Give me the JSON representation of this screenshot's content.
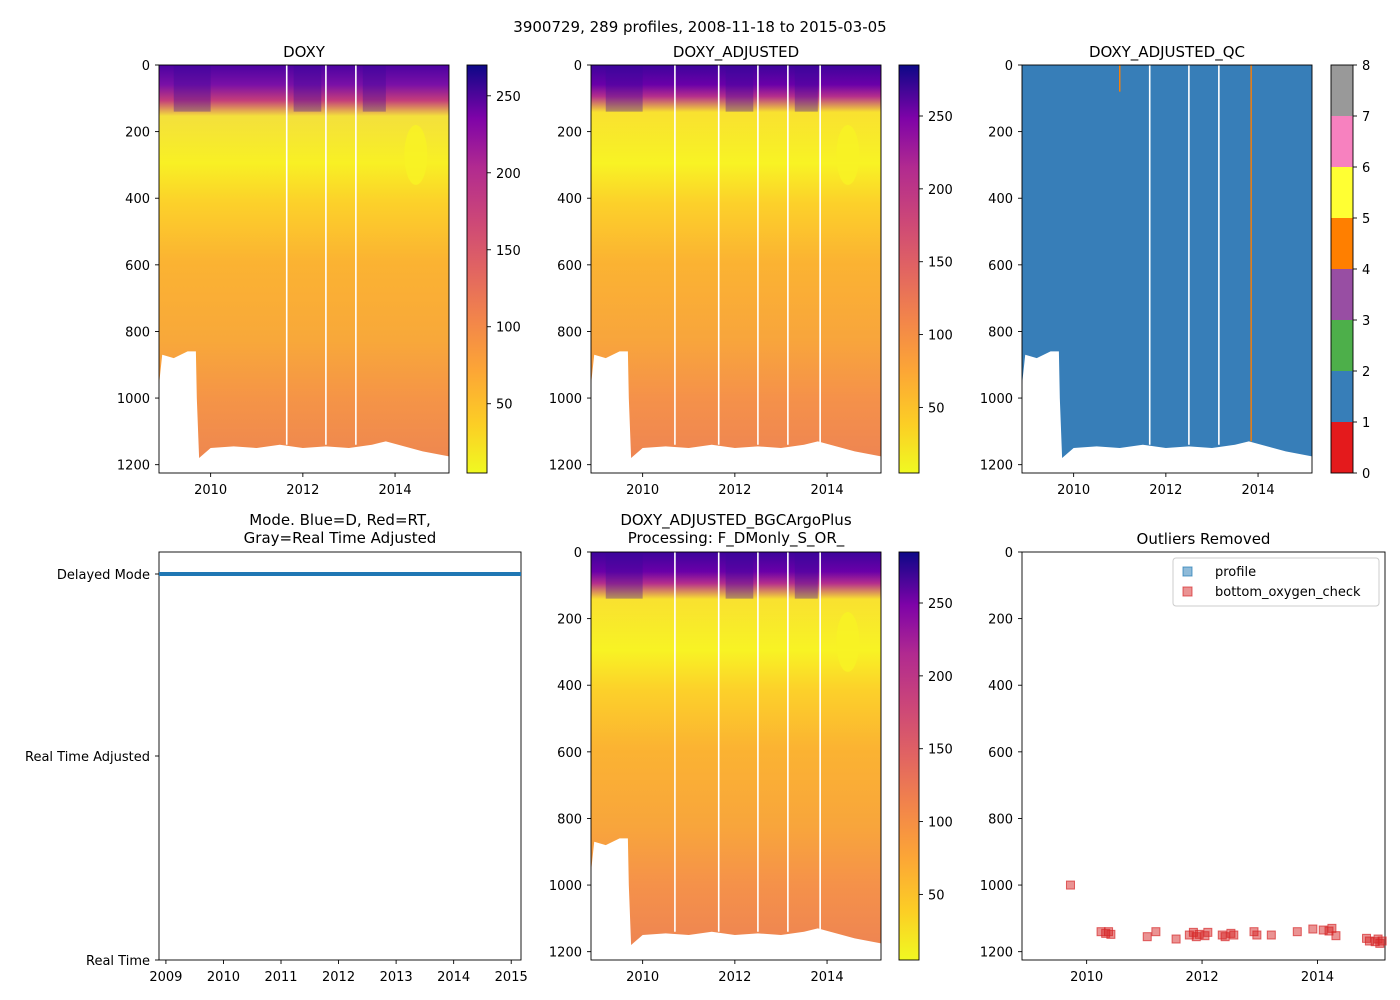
{
  "figure": {
    "suptitle": "3900729, 289 profiles, 2008-11-18 to 2015-03-05"
  },
  "chart_data": [
    {
      "id": "doxy",
      "type": "heatmap",
      "title": "DOXY",
      "xlim": [
        2008.88,
        2015.17
      ],
      "ylim": [
        1225,
        0
      ],
      "x_ticks": [
        2010,
        2012,
        2014
      ],
      "x_tick_labels": [
        "2010",
        "2012",
        "2014"
      ],
      "y_ticks": [
        0,
        200,
        400,
        600,
        800,
        1000,
        1200
      ],
      "y_tick_labels": [
        "0",
        "200",
        "400",
        "600",
        "800",
        "1000",
        "1200"
      ],
      "colormap": "plasma_r",
      "clim": [
        5,
        270
      ],
      "colorbar_ticks": [
        50,
        100,
        150,
        200,
        250
      ],
      "colorbar_tick_labels": [
        "50",
        "100",
        "150",
        "200",
        "250"
      ],
      "gap_years": [
        2011.65,
        2012.5,
        2013.15
      ],
      "profile_max_depth": [
        [
          2008.88,
          870
        ],
        [
          2009.5,
          860
        ],
        [
          2009.75,
          1175
        ],
        [
          2011,
          1150
        ],
        [
          2012,
          1140
        ],
        [
          2013,
          1150
        ],
        [
          2013.8,
          1130
        ],
        [
          2015.17,
          1170
        ]
      ]
    },
    {
      "id": "doxy-adjusted",
      "type": "heatmap",
      "title": "DOXY_ADJUSTED",
      "xlim": [
        2008.88,
        2015.17
      ],
      "ylim": [
        1225,
        0
      ],
      "x_ticks": [
        2010,
        2012,
        2014
      ],
      "x_tick_labels": [
        "2010",
        "2012",
        "2014"
      ],
      "y_ticks": [
        0,
        200,
        400,
        600,
        800,
        1000,
        1200
      ],
      "y_tick_labels": [
        "0",
        "200",
        "400",
        "600",
        "800",
        "1000",
        "1200"
      ],
      "colormap": "plasma_r",
      "clim": [
        5,
        285
      ],
      "colorbar_ticks": [
        50,
        100,
        150,
        200,
        250
      ],
      "colorbar_tick_labels": [
        "50",
        "100",
        "150",
        "200",
        "250"
      ],
      "gap_years": [
        2010.7,
        2011.65,
        2012.5,
        2013.15,
        2013.85
      ]
    },
    {
      "id": "doxy-adjusted-qc",
      "type": "heatmap",
      "title": "DOXY_ADJUSTED_QC",
      "xlim": [
        2008.88,
        2015.17
      ],
      "ylim": [
        1225,
        0
      ],
      "x_ticks": [
        2010,
        2012,
        2014
      ],
      "x_tick_labels": [
        "2010",
        "2012",
        "2014"
      ],
      "y_ticks": [
        0,
        200,
        400,
        600,
        800,
        1000,
        1200
      ],
      "y_tick_labels": [
        "0",
        "200",
        "400",
        "600",
        "800",
        "1000",
        "1200"
      ],
      "dominant_qc_flag": 1,
      "flag4_profiles": [
        2011.0,
        2013.85
      ],
      "colorbar_ticks": [
        0,
        1,
        2,
        3,
        4,
        5,
        6,
        7,
        8
      ],
      "colorbar_tick_labels": [
        "0",
        "1",
        "2",
        "3",
        "4",
        "5",
        "6",
        "7",
        "8"
      ],
      "qc_colors": [
        "#e41a1c",
        "#377eb8",
        "#4daf4a",
        "#984ea3",
        "#ff7f00",
        "#ffff33",
        "#a65628",
        "#f781bf",
        "#999999"
      ],
      "gap_years": [
        2011.65,
        2012.5,
        2013.15
      ]
    },
    {
      "id": "mode",
      "type": "scatter",
      "title": "Mode. Blue=D, Red=RT,",
      "title_line2": "Gray=Real Time Adjusted",
      "xlim": [
        2008.88,
        2015.17
      ],
      "x_ticks": [
        2009,
        2010,
        2011,
        2012,
        2013,
        2014,
        2015
      ],
      "x_tick_labels": [
        "2009",
        "2010",
        "2011",
        "2012",
        "2013",
        "2014",
        "2015"
      ],
      "y_categories": [
        "Real Time",
        "Real Time Adjusted",
        "Delayed Mode"
      ],
      "series": [
        {
          "name": "D",
          "color": "#1f77b4",
          "category": "Delayed Mode",
          "x_start": 2008.88,
          "x_end": 2015.17
        }
      ]
    },
    {
      "id": "doxy-adjusted-bgc",
      "type": "heatmap",
      "title": "DOXY_ADJUSTED_BGCArgoPlus",
      "title_line2": "Processing: F_DMonly_S_OR_",
      "xlim": [
        2008.88,
        2015.17
      ],
      "ylim": [
        1225,
        0
      ],
      "x_ticks": [
        2010,
        2012,
        2014
      ],
      "x_tick_labels": [
        "2010",
        "2012",
        "2014"
      ],
      "y_ticks": [
        0,
        200,
        400,
        600,
        800,
        1000,
        1200
      ],
      "y_tick_labels": [
        "0",
        "200",
        "400",
        "600",
        "800",
        "1000",
        "1200"
      ],
      "colormap": "plasma_r",
      "clim": [
        5,
        285
      ],
      "colorbar_ticks": [
        50,
        100,
        150,
        200,
        250
      ],
      "colorbar_tick_labels": [
        "50",
        "100",
        "150",
        "200",
        "250"
      ],
      "gap_years": [
        2010.7,
        2011.65,
        2012.5,
        2013.15,
        2013.85
      ]
    },
    {
      "id": "outliers",
      "type": "scatter",
      "title": "Outliers Removed",
      "xlim": [
        2008.88,
        2015.17
      ],
      "ylim": [
        1225,
        0
      ],
      "x_ticks": [
        2010,
        2012,
        2014
      ],
      "x_tick_labels": [
        "2010",
        "2012",
        "2014"
      ],
      "y_ticks": [
        0,
        200,
        400,
        600,
        800,
        1000,
        1200
      ],
      "y_tick_labels": [
        "0",
        "200",
        "400",
        "600",
        "800",
        "1000",
        "1200"
      ],
      "legend": {
        "position": "upper right",
        "entries": [
          "profile",
          "bottom_oxygen_check"
        ]
      },
      "series": [
        {
          "name": "profile",
          "color": "#1f77b4",
          "points": []
        },
        {
          "name": "bottom_oxygen_check",
          "color": "#d62728",
          "points": [
            [
              2009.72,
              1000
            ],
            [
              2010.25,
              1140
            ],
            [
              2010.33,
              1145
            ],
            [
              2010.38,
              1140
            ],
            [
              2010.42,
              1148
            ],
            [
              2011.05,
              1155
            ],
            [
              2011.2,
              1140
            ],
            [
              2011.55,
              1162
            ],
            [
              2011.78,
              1150
            ],
            [
              2011.85,
              1142
            ],
            [
              2011.9,
              1155
            ],
            [
              2011.95,
              1148
            ],
            [
              2012.05,
              1152
            ],
            [
              2012.1,
              1142
            ],
            [
              2012.35,
              1150
            ],
            [
              2012.4,
              1155
            ],
            [
              2012.5,
              1145
            ],
            [
              2012.55,
              1150
            ],
            [
              2012.9,
              1140
            ],
            [
              2012.95,
              1150
            ],
            [
              2013.2,
              1150
            ],
            [
              2013.65,
              1140
            ],
            [
              2013.92,
              1132
            ],
            [
              2014.1,
              1135
            ],
            [
              2014.2,
              1138
            ],
            [
              2014.25,
              1130
            ],
            [
              2014.32,
              1152
            ],
            [
              2014.85,
              1160
            ],
            [
              2014.9,
              1168
            ],
            [
              2015.0,
              1170
            ],
            [
              2015.05,
              1162
            ],
            [
              2015.08,
              1175
            ],
            [
              2015.12,
              1168
            ]
          ]
        }
      ]
    }
  ]
}
